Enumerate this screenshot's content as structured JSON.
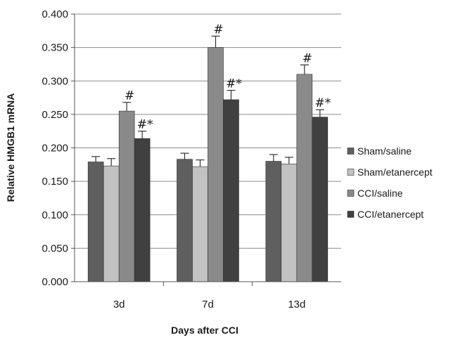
{
  "chart_data": {
    "type": "bar",
    "categories": [
      "3d",
      "7d",
      "13d"
    ],
    "xlabel": "Days after CCI",
    "ylabel": "Relative HMGB1 mRNA",
    "ylim": [
      0,
      0.4
    ],
    "yticks": [
      "0.000",
      "0.050",
      "0.100",
      "0.150",
      "0.200",
      "0.250",
      "0.300",
      "0.350",
      "0.400"
    ],
    "grid": true,
    "legend_position": "right",
    "series": [
      {
        "name": "Sham/saline",
        "color": "#5f5f5f",
        "values": [
          0.179,
          0.183,
          0.18
        ],
        "errors": [
          0.008,
          0.009,
          0.01
        ],
        "annotations": [
          "",
          "",
          ""
        ]
      },
      {
        "name": "Sham/etanercept",
        "color": "#c2c2c2",
        "values": [
          0.173,
          0.172,
          0.176
        ],
        "errors": [
          0.011,
          0.01,
          0.01
        ],
        "annotations": [
          "",
          "",
          ""
        ]
      },
      {
        "name": "CCI/saline",
        "color": "#8a8a8a",
        "values": [
          0.255,
          0.35,
          0.31
        ],
        "errors": [
          0.013,
          0.017,
          0.014
        ],
        "annotations": [
          "#",
          "#",
          "#"
        ]
      },
      {
        "name": "CCI/etanercept",
        "color": "#404040",
        "values": [
          0.214,
          0.272,
          0.246
        ],
        "errors": [
          0.011,
          0.014,
          0.011
        ],
        "annotations": [
          "#*",
          "#*",
          "#*"
        ]
      }
    ]
  }
}
